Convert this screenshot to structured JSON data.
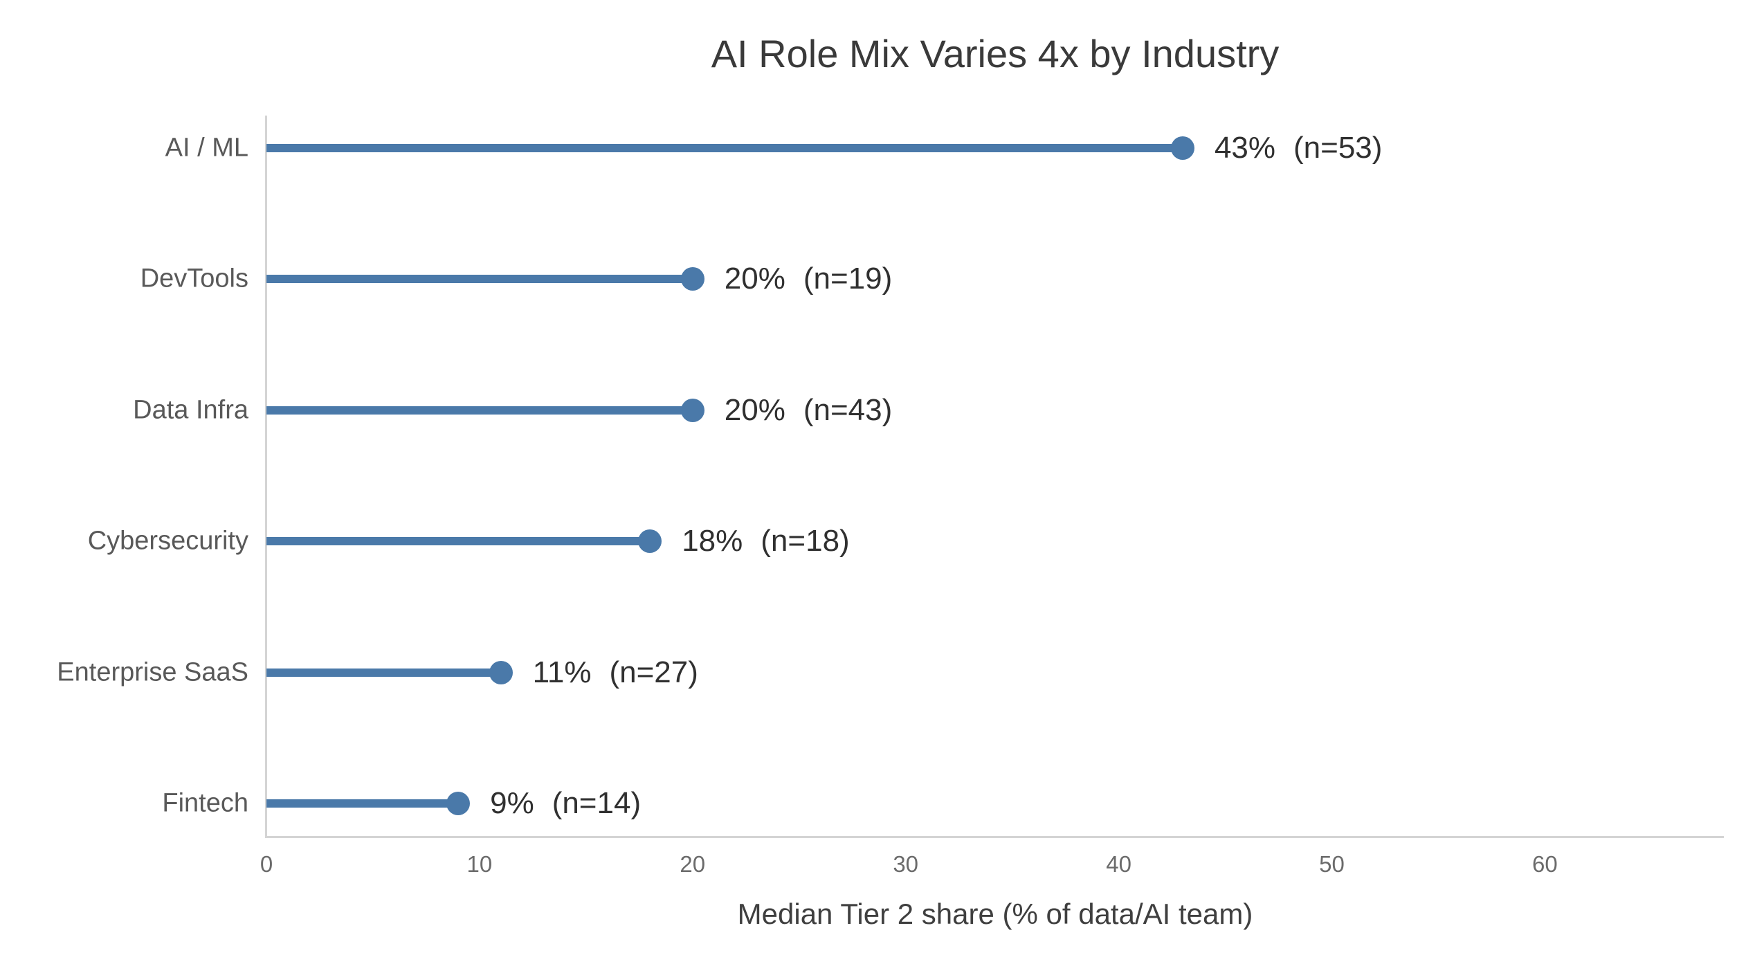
{
  "chart_data": {
    "type": "bar",
    "variant": "horizontal-lollipop",
    "title": "AI Role Mix Varies 4x by Industry",
    "xlabel": "Median Tier 2 share (% of data/AI team)",
    "ylabel": "",
    "categories": [
      "AI / ML",
      "DevTools",
      "Data Infra",
      "Cybersecurity",
      "Enterprise SaaS",
      "Fintech"
    ],
    "values": [
      43,
      20,
      20,
      18,
      11,
      9
    ],
    "sample_sizes": [
      53,
      19,
      43,
      18,
      27,
      14
    ],
    "point_labels": [
      "43%",
      "20%",
      "20%",
      "18%",
      "11%",
      "9%"
    ],
    "n_labels": [
      "(n=53)",
      "(n=19)",
      "(n=43)",
      "(n=18)",
      "(n=27)",
      "(n=14)"
    ],
    "xticks": [
      0,
      10,
      20,
      30,
      40,
      50,
      60
    ],
    "xlim": [
      0,
      68.4
    ],
    "grid": false,
    "legend": null,
    "colors": {
      "marker": "#4A79A9",
      "axis_line": "#D4D4D4",
      "title_text": "#3A3A3A",
      "category_text": "#595959",
      "tick_text": "#6B6B6B",
      "annotation_text": "#303030",
      "axis_label_text": "#3F3F3F",
      "background": "#FFFFFF"
    }
  }
}
